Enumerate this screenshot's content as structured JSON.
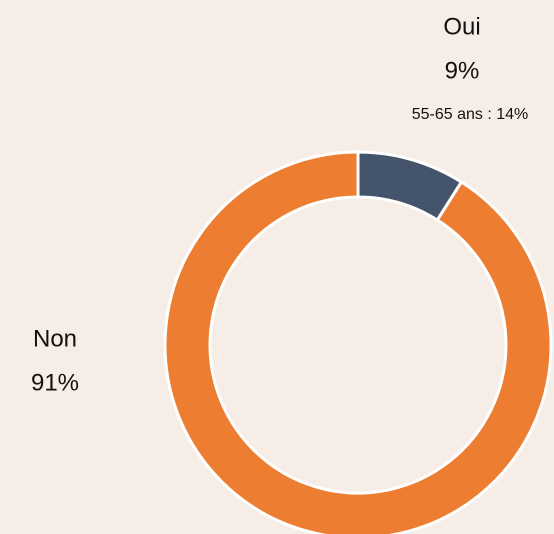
{
  "chart_data": {
    "type": "donut",
    "categories": [
      "Oui",
      "Non"
    ],
    "values": [
      9,
      91
    ],
    "value_labels": [
      "9%",
      "91%"
    ],
    "colors": [
      "#44546a",
      "#ed7d31"
    ],
    "annotation": "55-65 ans : 14%",
    "annotation_color": "#00b050"
  }
}
